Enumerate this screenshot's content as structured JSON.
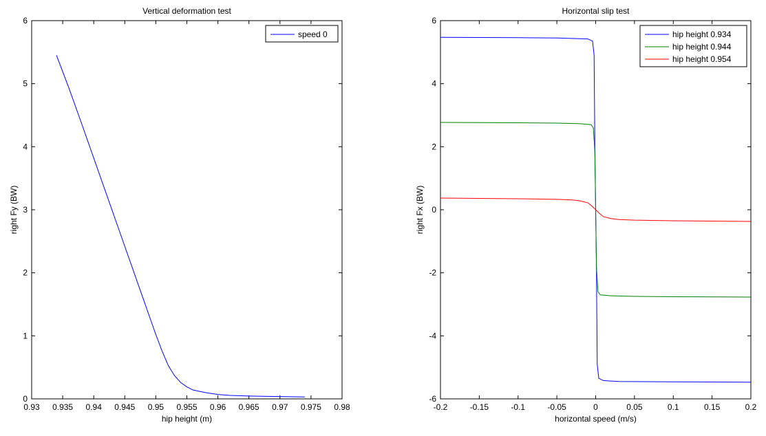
{
  "figure": {
    "background": "#ffffff",
    "axis_color": "#000000"
  },
  "chart_data": [
    {
      "type": "line",
      "title": "Vertical deformation test",
      "xlabel": "hip height (m)",
      "ylabel": "right Fy (BW)",
      "xlim": [
        0.93,
        0.98
      ],
      "ylim": [
        0,
        6
      ],
      "xticks": [
        0.93,
        0.935,
        0.94,
        0.945,
        0.95,
        0.955,
        0.96,
        0.965,
        0.97,
        0.975,
        0.98
      ],
      "xtick_labels": [
        "0.93",
        "0.935",
        "0.94",
        "0.945",
        "0.95",
        "0.955",
        "0.96",
        "0.965",
        "0.97",
        "0.975",
        "0.98"
      ],
      "yticks": [
        0,
        1,
        2,
        3,
        4,
        5,
        6
      ],
      "ytick_labels": [
        "0",
        "1",
        "2",
        "3",
        "4",
        "5",
        "6"
      ],
      "grid": false,
      "legend_position": "top-right",
      "series": [
        {
          "name": "speed 0",
          "color": "#0000ff",
          "x": [
            0.934,
            0.936,
            0.938,
            0.94,
            0.942,
            0.944,
            0.946,
            0.948,
            0.95,
            0.951,
            0.952,
            0.953,
            0.954,
            0.955,
            0.956,
            0.958,
            0.96,
            0.962,
            0.965,
            0.968,
            0.971,
            0.974
          ],
          "y": [
            5.45,
            4.93,
            4.38,
            3.82,
            3.26,
            2.7,
            2.14,
            1.58,
            1.02,
            0.76,
            0.53,
            0.37,
            0.26,
            0.19,
            0.14,
            0.1,
            0.07,
            0.055,
            0.045,
            0.04,
            0.035,
            0.03
          ]
        }
      ]
    },
    {
      "type": "line",
      "title": "Horizontal slip test",
      "xlabel": "horizontal speed (m/s)",
      "ylabel": "right Fx (BW)",
      "xlim": [
        -0.2,
        0.2
      ],
      "ylim": [
        -6,
        6
      ],
      "xticks": [
        -0.2,
        -0.15,
        -0.1,
        -0.05,
        0,
        0.05,
        0.1,
        0.15,
        0.2
      ],
      "xtick_labels": [
        "-0.2",
        "-0.15",
        "-0.1",
        "-0.05",
        "0",
        "0.05",
        "0.1",
        "0.15",
        "0.2"
      ],
      "yticks": [
        -6,
        -4,
        -2,
        0,
        2,
        4,
        6
      ],
      "ytick_labels": [
        "-6",
        "-4",
        "-2",
        "0",
        "2",
        "4",
        "6"
      ],
      "grid": false,
      "legend_position": "top-right",
      "series": [
        {
          "name": "hip height 0.934",
          "color": "#0000ff",
          "x": [
            -0.2,
            -0.1,
            -0.05,
            -0.01,
            -0.004,
            -0.002,
            -0.001,
            0,
            0.001,
            0.002,
            0.004,
            0.01,
            0.03,
            0.1,
            0.2
          ],
          "y": [
            5.47,
            5.46,
            5.45,
            5.42,
            5.35,
            4.9,
            1.8,
            0,
            -1.8,
            -4.9,
            -5.35,
            -5.42,
            -5.45,
            -5.46,
            -5.47
          ]
        },
        {
          "name": "hip height 0.944",
          "color": "#008000",
          "x": [
            -0.2,
            -0.1,
            -0.05,
            -0.02,
            -0.006,
            -0.003,
            -0.001,
            0,
            0.001,
            0.003,
            0.006,
            0.02,
            0.05,
            0.1,
            0.2
          ],
          "y": [
            2.77,
            2.76,
            2.75,
            2.73,
            2.7,
            2.6,
            1.8,
            0,
            -1.8,
            -2.6,
            -2.7,
            -2.73,
            -2.75,
            -2.76,
            -2.77
          ]
        },
        {
          "name": "hip height 0.954",
          "color": "#ff0000",
          "x": [
            -0.2,
            -0.15,
            -0.1,
            -0.05,
            -0.03,
            -0.02,
            -0.01,
            -0.005,
            0,
            0.005,
            0.01,
            0.02,
            0.03,
            0.05,
            0.1,
            0.15,
            0.2
          ],
          "y": [
            0.37,
            0.36,
            0.35,
            0.33,
            0.31,
            0.28,
            0.22,
            0.12,
            0,
            -0.12,
            -0.22,
            -0.28,
            -0.31,
            -0.33,
            -0.35,
            -0.36,
            -0.37
          ]
        }
      ]
    }
  ]
}
